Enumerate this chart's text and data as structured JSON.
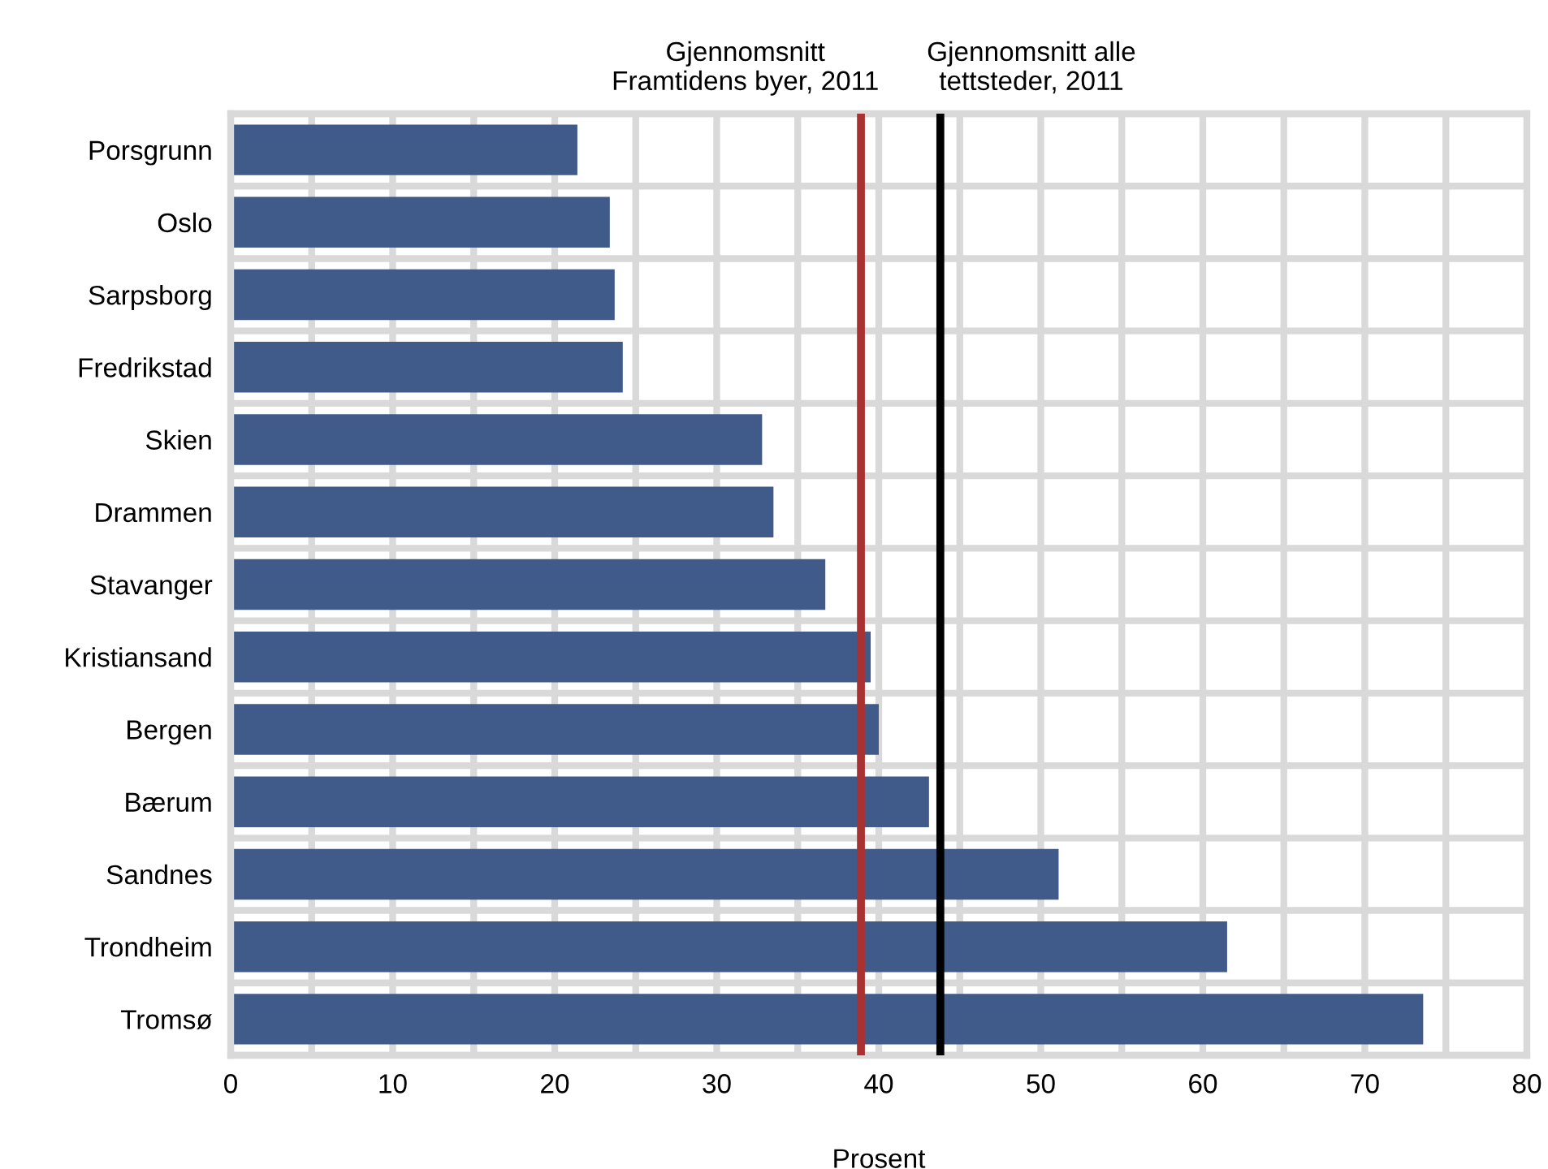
{
  "chart_data": {
    "type": "bar",
    "orientation": "horizontal",
    "xlabel": "Prosent",
    "categories": [
      "Porsgrunn",
      "Oslo",
      "Sarpsborg",
      "Fredrikstad",
      "Skien",
      "Drammen",
      "Stavanger",
      "Kristiansand",
      "Bergen",
      "Bærum",
      "Sandnes",
      "Trondheim",
      "Tromsø"
    ],
    "values": [
      21.4,
      23.4,
      23.7,
      24.2,
      32.8,
      33.5,
      36.7,
      39.5,
      40.0,
      43.1,
      51.1,
      61.5,
      73.6
    ],
    "color": "#405b8a",
    "xlim": [
      0,
      80
    ],
    "xticks": [
      0,
      {
        "value": 5,
        "label": null
      },
      10,
      {
        "value": 15,
        "label": null
      },
      20,
      {
        "value": 25,
        "label": null
      },
      30,
      {
        "value": 35,
        "label": null
      },
      40,
      {
        "value": 45,
        "label": null
      },
      50,
      {
        "value": 55,
        "label": null
      },
      60,
      {
        "value": 65,
        "label": null
      },
      70,
      {
        "value": 75,
        "label": null
      },
      80
    ],
    "grid": true,
    "legend": false,
    "ref_lines": [
      {
        "axis": "x",
        "value": 38.9,
        "label": "Gjennomsnitt\nFramtidens byer, 2011",
        "color": "#a83232"
      },
      {
        "axis": "x",
        "value": 43.8,
        "label": "Gjennomsnitt alle\ntettsteder, 2011",
        "color": "#000000"
      }
    ]
  }
}
